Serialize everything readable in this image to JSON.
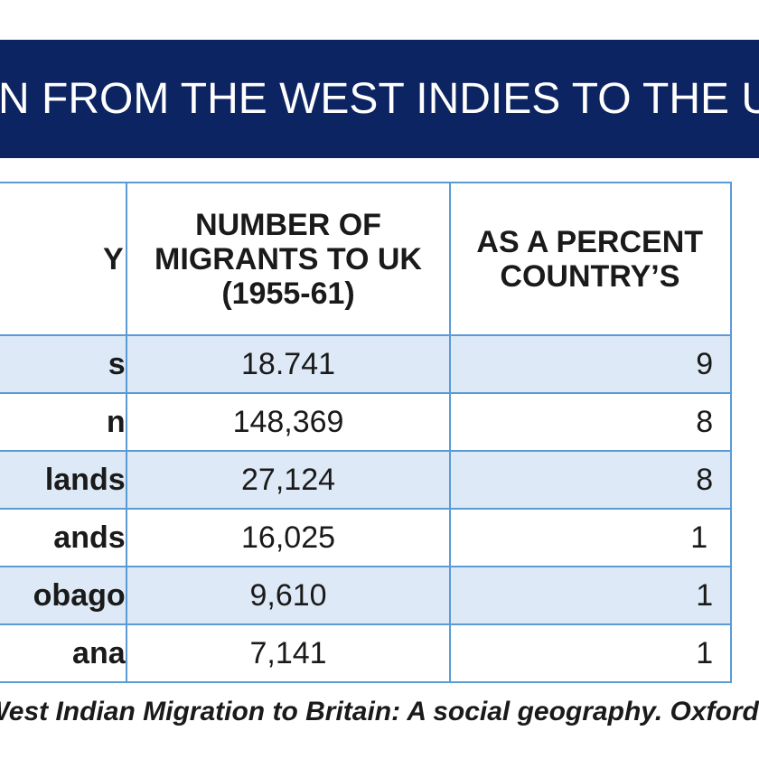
{
  "title": "N FROM THE WEST INDIES TO THE UK (",
  "table": {
    "headers": {
      "country": "Y",
      "migrants": [
        "NUMBER OF",
        "MIGRANTS TO UK",
        "(1955-61)"
      ],
      "percent": [
        "AS A PERCENT",
        "COUNTRY’S"
      ]
    },
    "rows": [
      {
        "country": "s",
        "migrants": "18.741",
        "percent": "9"
      },
      {
        "country": "n",
        "migrants": "148,369",
        "percent": "8"
      },
      {
        "country": "lands",
        "migrants": "27,124",
        "percent": "8"
      },
      {
        "country": "ands",
        "migrants": "16,025",
        "percent": "1"
      },
      {
        "country": "obago",
        "migrants": "9,610",
        "percent": "1"
      },
      {
        "country": "ana",
        "migrants": "7,141",
        "percent": "1"
      }
    ]
  },
  "source": "West Indian Migration to Britain: A social geography. Oxford"
}
